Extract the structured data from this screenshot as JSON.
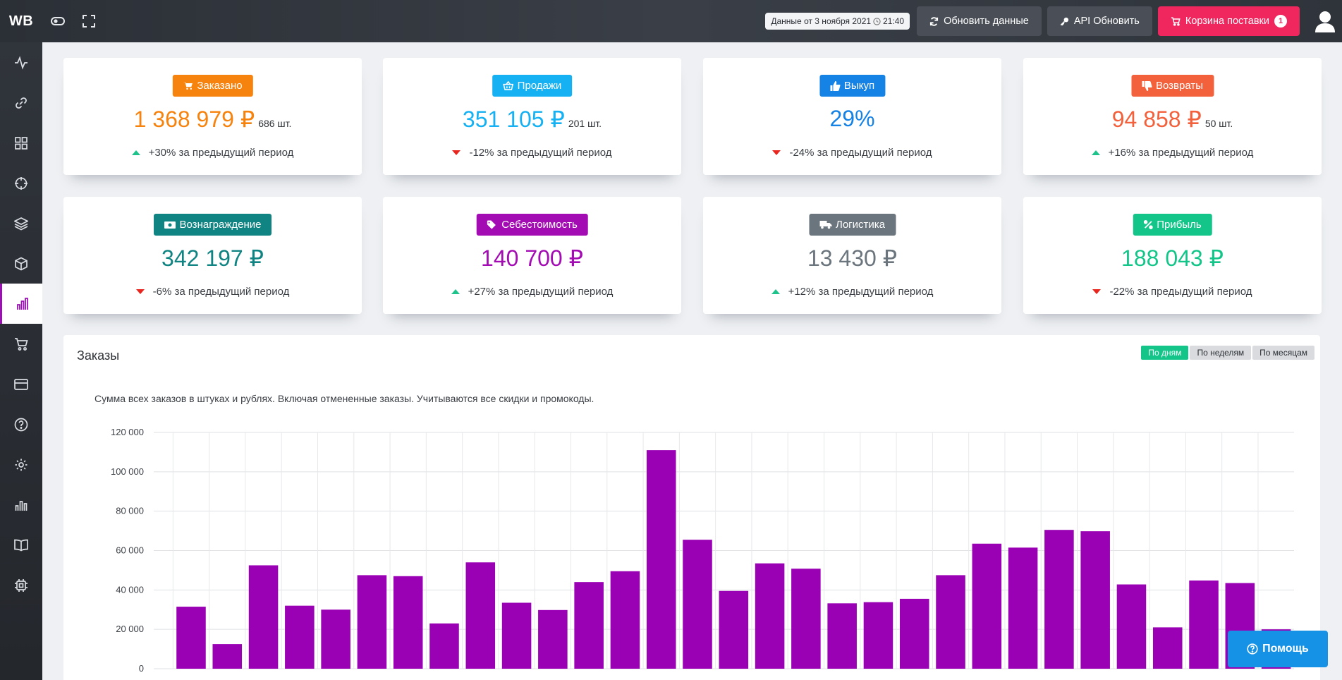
{
  "app": {
    "logo": "WB"
  },
  "topbar": {
    "date_label": "Данные от 3 ноября 2021",
    "time_label": "21:40",
    "refresh_label": "Обновить данные",
    "api_label": "API Обновить",
    "cart_label": "Корзина поставки",
    "cart_count": "1"
  },
  "sidebar": {
    "items": [
      {
        "icon": "activity-icon"
      },
      {
        "icon": "link-icon"
      },
      {
        "icon": "grid-icon"
      },
      {
        "icon": "target-icon"
      },
      {
        "icon": "layers-icon"
      },
      {
        "icon": "box-icon"
      },
      {
        "icon": "bar-chart-icon",
        "active": true
      },
      {
        "icon": "cart-icon"
      },
      {
        "icon": "credit-card-icon"
      },
      {
        "icon": "help-circle-icon"
      },
      {
        "icon": "settings-icon"
      },
      {
        "icon": "bar-chart-2-icon"
      },
      {
        "icon": "book-icon"
      },
      {
        "icon": "cpu-icon"
      }
    ]
  },
  "cards": [
    {
      "label": "Заказано",
      "icon": "cart-icon",
      "color": "#f7830f",
      "value": "1 368 979 ₽",
      "qty": "686 шт.",
      "change": "+30% за предыдущий период",
      "direction": "up"
    },
    {
      "label": "Продажи",
      "icon": "basket-icon",
      "color": "#16b1f2",
      "value": "351 105 ₽",
      "qty": "201 шт.",
      "change": "-12% за предыдущий период",
      "direction": "down"
    },
    {
      "label": "Выкуп",
      "icon": "thumbs-up-icon",
      "color": "#1582e6",
      "value": "29%",
      "qty": "",
      "change": "-24% за предыдущий период",
      "direction": "down"
    },
    {
      "label": "Возвраты",
      "icon": "thumbs-down-icon",
      "color": "#f3613c",
      "value": "94 858 ₽",
      "qty": "50 шт.",
      "change": "+16% за предыдущий период",
      "direction": "up"
    },
    {
      "label": "Вознаграждение",
      "icon": "money-icon",
      "color": "#108482",
      "value": "342 197 ₽",
      "qty": "",
      "change": "-6% за предыдущий период",
      "direction": "down"
    },
    {
      "label": "Себестоимость",
      "icon": "tags-icon",
      "color": "#a30bb3",
      "value": "140 700 ₽",
      "qty": "",
      "change": "+27% за предыдущий период",
      "direction": "up"
    },
    {
      "label": "Логистика",
      "icon": "truck-icon",
      "color": "#6b757d",
      "value": "13 430 ₽",
      "qty": "",
      "change": "+12% за предыдущий период",
      "direction": "up"
    },
    {
      "label": "Прибыль",
      "icon": "percent-icon",
      "color": "#14c58a",
      "value": "188 043 ₽",
      "qty": "",
      "change": "-22% за предыдущий период",
      "direction": "down"
    }
  ],
  "orders_panel": {
    "title": "Заказы",
    "description": "Сумма всех заказов в штуках и рублях. Включая отмененные заказы. Учитываются все скидки и промокоды.",
    "ranges": [
      "По дням",
      "По неделям",
      "По месяцам"
    ],
    "active_range": "По дням"
  },
  "chart_data": {
    "type": "bar",
    "ylim": [
      0,
      120000
    ],
    "yticks": [
      "0",
      "20 000",
      "40 000",
      "60 000",
      "80 000",
      "100 000",
      "120 000"
    ],
    "bar_color": "#9a00b4",
    "values": [
      31500,
      12500,
      52500,
      32000,
      30000,
      47500,
      47000,
      23000,
      54000,
      33500,
      29800,
      44000,
      49500,
      111000,
      65500,
      39500,
      53500,
      50800,
      33200,
      33800,
      35500,
      47500,
      63500,
      61500,
      70500,
      69800,
      42800,
      21000,
      44800,
      43500,
      20000
    ],
    "grid": true
  },
  "help": {
    "label": "Помощь"
  }
}
